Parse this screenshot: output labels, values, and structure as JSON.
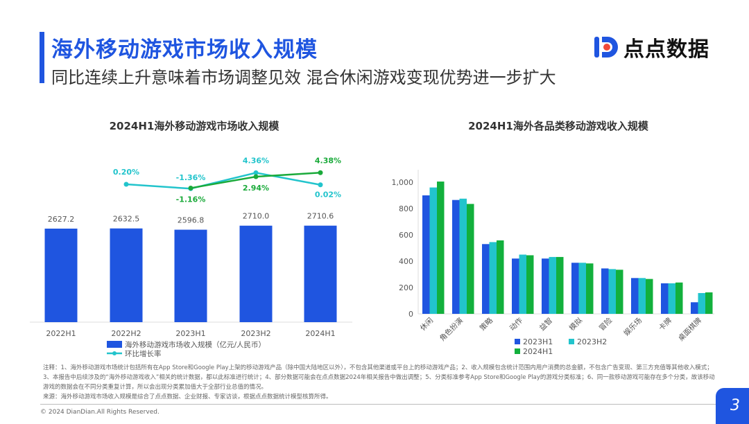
{
  "header": {
    "title": "海外移动游戏市场收入规模",
    "subtitle": "同比连续上升意味着市场调整见效 混合休闲游戏变现优势进一步扩大",
    "logo_text": "点点数据",
    "accent_color": "#1f55e0"
  },
  "chart_data": [
    {
      "type": "bar+line",
      "title": "2024H1海外移动游戏市场收入规模",
      "categories": [
        "2022H1",
        "2022H2",
        "2023H1",
        "2023H2",
        "2024H1"
      ],
      "bars": {
        "name": "海外移动游戏市场收入规模（亿元/人民币）",
        "values": [
          2627.2,
          2632.5,
          2596.8,
          2710.0,
          2710.6
        ],
        "labels": [
          "2627.2",
          "2632.5",
          "2596.8",
          "2710.0",
          "2710.6"
        ],
        "color": "#1f55e0"
      },
      "lines": [
        {
          "name": "环比增长率",
          "values": [
            null,
            0.2,
            -1.36,
            4.36,
            0.02
          ],
          "labels": [
            "",
            "0.20%",
            "-1.36%",
            "4.36%",
            "0.02%"
          ],
          "color": "#22c4cc"
        },
        {
          "values": [
            null,
            null,
            -1.16,
            2.94,
            4.38
          ],
          "labels": [
            "",
            "",
            "-1.16%",
            "2.94%",
            "4.38%"
          ],
          "color": "#1aaa3a"
        }
      ],
      "legend_position": "bottom"
    },
    {
      "type": "bar",
      "title": "2024H1海外各品类移动游戏收入规模",
      "categories": [
        "休闲",
        "角色扮演",
        "策略",
        "动作",
        "益智",
        "模拟",
        "冒险",
        "娱乐场",
        "卡牌",
        "桌面棋牌"
      ],
      "series": [
        {
          "name": "2023H1",
          "values": [
            900,
            865,
            530,
            420,
            420,
            388,
            345,
            272,
            232,
            88
          ],
          "color": "#1f55e0"
        },
        {
          "name": "2023H2",
          "values": [
            960,
            875,
            545,
            450,
            432,
            388,
            340,
            272,
            232,
            158
          ],
          "color": "#22c4cc"
        },
        {
          "name": "2024H1",
          "values": [
            1005,
            835,
            558,
            445,
            432,
            383,
            335,
            265,
            238,
            163
          ],
          "color": "#12b03c"
        }
      ],
      "yticks": [
        "0",
        "200",
        "400",
        "600",
        "800",
        "1,000"
      ],
      "ylim": [
        0,
        1000
      ],
      "legend_position": "bottom"
    }
  ],
  "footer": {
    "notes": "注释：1、海外移动游戏市场统计包括所有在App Store和Google Play上架的移动游戏产品（除中国大陆地区以外），不包含其他渠道或平台上的移动游戏产品；2、收入规模包含统计范围内用户消费的总金额，不包含广告变现、第三方充值等其他收入模式；3、本报告中后续涉及的“海外移动游戏收入”相关的统计数据，都以此标准进行统计；4、部分数据可能会在点点数据2024年相关报告中做出调整；5、分类标准参考App Store和Google Play的游戏分类标准；6、同一款移动游戏可能存在多个分类，故该移动游戏的数据会在不同分类重复计算，所以会出现分类累加值大于全部行业总值的情况。",
    "source": "来源：海外移动游戏市场收入规模是综合了点点数据、企业财报、专家访谈，根据点点数据统计模型核算所得。",
    "copyright": "© 2024 DianDian.All Rights Reserved.",
    "page_number": "3"
  }
}
